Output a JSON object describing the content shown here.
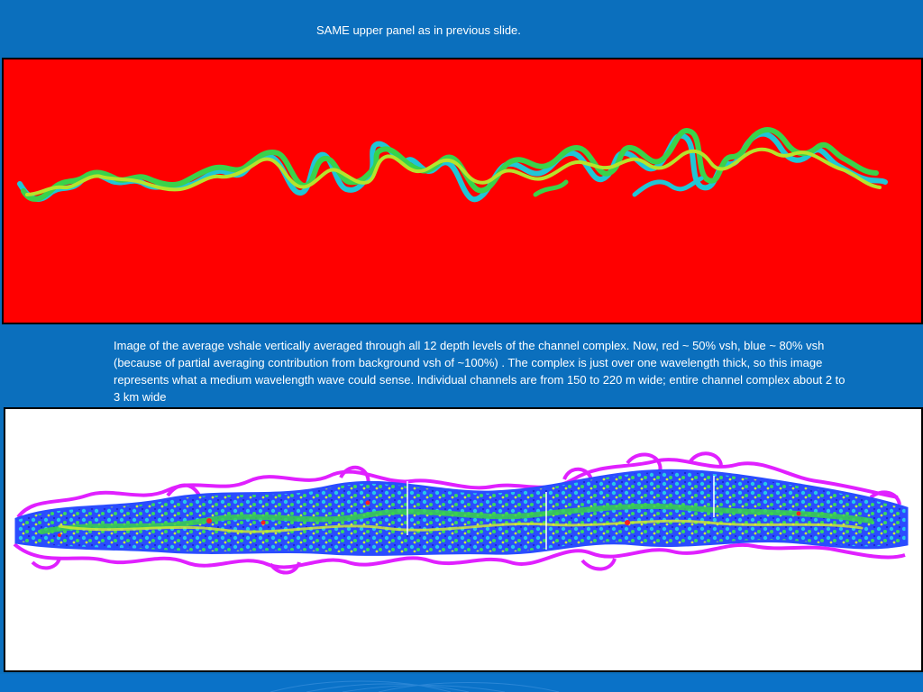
{
  "slide": {
    "header_caption": "SAME upper panel as in previous slide.",
    "body_caption": "Image of the average vshale vertically averaged through all 12 depth levels of the channel complex. Now, red ~ 50% vsh, blue ~ 80% vsh (because of partial averaging contribution from background vsh of ~100%) . The complex is just over one wavelength thick, so this image represents what a medium wavelength wave could sense. Individual channels are from 150 to 220 m wide; entire channel complex about 2 to 3 km wide"
  },
  "colors": {
    "slide_background": "#0b6fbd",
    "top_panel_background": "#ff0000",
    "bottom_panel_background": "#ffffff",
    "channel_green": "#3ad24a",
    "channel_cyan": "#20c6d6",
    "channel_yellow": "#c8e62a",
    "complex_magenta": "#e020ff",
    "complex_blue": "#2848ff"
  }
}
